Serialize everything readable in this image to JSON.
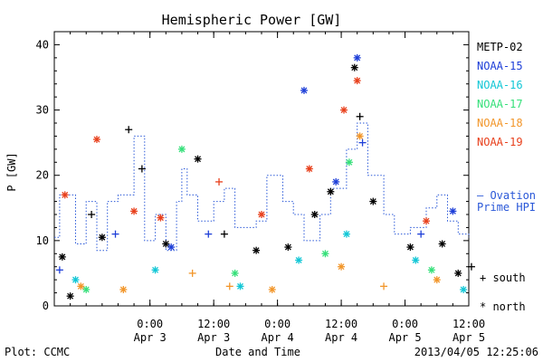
{
  "chart_data": {
    "type": "scatter",
    "title": "Hemispheric Power [GW]",
    "ylabel": "P [GW]",
    "xlabel": "Date and Time",
    "ylim": [
      0,
      42
    ],
    "yticks": [
      0,
      10,
      20,
      30,
      40
    ],
    "xlim": [
      "2013-04-02 06:00",
      "2013-04-05 12:00"
    ],
    "xticks": [
      {
        "t": "2013-04-03 00:00",
        "line1": "0:00",
        "line2": "Apr 3"
      },
      {
        "t": "2013-04-03 12:00",
        "line1": "12:00",
        "line2": "Apr 3"
      },
      {
        "t": "2013-04-04 00:00",
        "line1": "0:00",
        "line2": "Apr 4"
      },
      {
        "t": "2013-04-04 12:00",
        "line1": "12:00",
        "line2": "Apr 4"
      },
      {
        "t": "2013-04-05 00:00",
        "line1": "0:00",
        "line2": "Apr 5"
      },
      {
        "t": "2013-04-05 12:00",
        "line1": "12:00",
        "line2": "Apr 5"
      }
    ],
    "legend_position": "right",
    "satellite_legend": [
      {
        "name": "METP-02",
        "color": "#000000"
      },
      {
        "name": "NOAA-15",
        "color": "#1e3fd8"
      },
      {
        "name": "NOAA-16",
        "color": "#13c7d6"
      },
      {
        "name": "NOAA-17",
        "color": "#36e07a"
      },
      {
        "name": "NOAA-18",
        "color": "#f2962a"
      },
      {
        "name": "NOAA-19",
        "color": "#e8401c"
      }
    ],
    "ovation_label": [
      "— Ovation",
      "Prime HPI"
    ],
    "ovation_color": "#2a58d8",
    "ovation_series": [
      {
        "t": "2013-04-02 06:00",
        "v": 10.5
      },
      {
        "t": "2013-04-02 07:00",
        "v": 17
      },
      {
        "t": "2013-04-02 10:00",
        "v": 9.5
      },
      {
        "t": "2013-04-02 12:00",
        "v": 16
      },
      {
        "t": "2013-04-02 14:00",
        "v": 8.5
      },
      {
        "t": "2013-04-02 16:00",
        "v": 16
      },
      {
        "t": "2013-04-02 18:00",
        "v": 17
      },
      {
        "t": "2013-04-02 21:00",
        "v": 26
      },
      {
        "t": "2013-04-02 23:00",
        "v": 10
      },
      {
        "t": "2013-04-03 01:00",
        "v": 14
      },
      {
        "t": "2013-04-03 03:00",
        "v": 8.5
      },
      {
        "t": "2013-04-03 05:00",
        "v": 16
      },
      {
        "t": "2013-04-03 06:00",
        "v": 21
      },
      {
        "t": "2013-04-03 07:00",
        "v": 17
      },
      {
        "t": "2013-04-03 09:00",
        "v": 13
      },
      {
        "t": "2013-04-03 12:00",
        "v": 16
      },
      {
        "t": "2013-04-03 14:00",
        "v": 18
      },
      {
        "t": "2013-04-03 16:00",
        "v": 12
      },
      {
        "t": "2013-04-03 20:00",
        "v": 13
      },
      {
        "t": "2013-04-03 22:00",
        "v": 20
      },
      {
        "t": "2013-04-04 01:00",
        "v": 16
      },
      {
        "t": "2013-04-04 03:00",
        "v": 14
      },
      {
        "t": "2013-04-04 05:00",
        "v": 10
      },
      {
        "t": "2013-04-04 08:00",
        "v": 14
      },
      {
        "t": "2013-04-04 10:00",
        "v": 18
      },
      {
        "t": "2013-04-04 13:00",
        "v": 24
      },
      {
        "t": "2013-04-04 15:00",
        "v": 28
      },
      {
        "t": "2013-04-04 17:00",
        "v": 20
      },
      {
        "t": "2013-04-04 20:00",
        "v": 14
      },
      {
        "t": "2013-04-04 22:00",
        "v": 11
      },
      {
        "t": "2013-04-05 01:00",
        "v": 12
      },
      {
        "t": "2013-04-05 04:00",
        "v": 15
      },
      {
        "t": "2013-04-05 06:00",
        "v": 17
      },
      {
        "t": "2013-04-05 08:00",
        "v": 13
      },
      {
        "t": "2013-04-05 10:00",
        "v": 11
      },
      {
        "t": "2013-04-05 12:00",
        "v": 10.5
      }
    ],
    "series": [
      {
        "name": "METP-02",
        "color": "#000000",
        "points": [
          {
            "t": "2013-04-02 07:30",
            "v": 7.5,
            "h": "north"
          },
          {
            "t": "2013-04-02 09:00",
            "v": 1.5,
            "h": "north"
          },
          {
            "t": "2013-04-02 13:00",
            "v": 14,
            "h": "south"
          },
          {
            "t": "2013-04-02 15:00",
            "v": 10.5,
            "h": "north"
          },
          {
            "t": "2013-04-02 20:00",
            "v": 27,
            "h": "south"
          },
          {
            "t": "2013-04-02 22:30",
            "v": 21,
            "h": "south"
          },
          {
            "t": "2013-04-03 03:00",
            "v": 9.5,
            "h": "north"
          },
          {
            "t": "2013-04-03 09:00",
            "v": 22.5,
            "h": "north"
          },
          {
            "t": "2013-04-03 14:00",
            "v": 11,
            "h": "south"
          },
          {
            "t": "2013-04-03 20:00",
            "v": 8.5,
            "h": "north"
          },
          {
            "t": "2013-04-04 02:00",
            "v": 9,
            "h": "north"
          },
          {
            "t": "2013-04-04 07:00",
            "v": 14,
            "h": "north"
          },
          {
            "t": "2013-04-04 10:00",
            "v": 17.5,
            "h": "north"
          },
          {
            "t": "2013-04-04 14:30",
            "v": 36.5,
            "h": "north"
          },
          {
            "t": "2013-04-04 15:30",
            "v": 29,
            "h": "south"
          },
          {
            "t": "2013-04-04 18:00",
            "v": 16,
            "h": "north"
          },
          {
            "t": "2013-04-05 01:00",
            "v": 9,
            "h": "north"
          },
          {
            "t": "2013-04-05 07:00",
            "v": 9.5,
            "h": "north"
          },
          {
            "t": "2013-04-05 10:00",
            "v": 5,
            "h": "north"
          },
          {
            "t": "2013-04-05 12:30",
            "v": 6,
            "h": "south"
          }
        ]
      },
      {
        "name": "NOAA-15",
        "color": "#1e3fd8",
        "points": [
          {
            "t": "2013-04-02 07:00",
            "v": 5.5,
            "h": "south"
          },
          {
            "t": "2013-04-02 17:30",
            "v": 11,
            "h": "south"
          },
          {
            "t": "2013-04-03 04:00",
            "v": 9,
            "h": "north"
          },
          {
            "t": "2013-04-03 11:00",
            "v": 11,
            "h": "south"
          },
          {
            "t": "2013-04-04 05:00",
            "v": 33,
            "h": "north"
          },
          {
            "t": "2013-04-04 11:00",
            "v": 19,
            "h": "north"
          },
          {
            "t": "2013-04-04 15:00",
            "v": 38,
            "h": "north"
          },
          {
            "t": "2013-04-04 16:00",
            "v": 25,
            "h": "south"
          },
          {
            "t": "2013-04-05 03:00",
            "v": 11,
            "h": "south"
          },
          {
            "t": "2013-04-05 09:00",
            "v": 14.5,
            "h": "north"
          }
        ]
      },
      {
        "name": "NOAA-16",
        "color": "#13c7d6",
        "points": [
          {
            "t": "2013-04-02 10:00",
            "v": 4,
            "h": "north"
          },
          {
            "t": "2013-04-03 01:00",
            "v": 5.5,
            "h": "north"
          },
          {
            "t": "2013-04-03 17:00",
            "v": 3,
            "h": "north"
          },
          {
            "t": "2013-04-04 04:00",
            "v": 7,
            "h": "north"
          },
          {
            "t": "2013-04-04 13:00",
            "v": 11,
            "h": "north"
          },
          {
            "t": "2013-04-05 02:00",
            "v": 7,
            "h": "north"
          },
          {
            "t": "2013-04-05 11:00",
            "v": 2.5,
            "h": "north"
          }
        ]
      },
      {
        "name": "NOAA-17",
        "color": "#36e07a",
        "points": [
          {
            "t": "2013-04-02 12:00",
            "v": 2.5,
            "h": "north"
          },
          {
            "t": "2013-04-03 06:00",
            "v": 24,
            "h": "north"
          },
          {
            "t": "2013-04-03 16:00",
            "v": 5,
            "h": "north"
          },
          {
            "t": "2013-04-04 09:00",
            "v": 8,
            "h": "north"
          },
          {
            "t": "2013-04-04 13:30",
            "v": 22,
            "h": "north"
          },
          {
            "t": "2013-04-05 05:00",
            "v": 5.5,
            "h": "north"
          }
        ]
      },
      {
        "name": "NOAA-18",
        "color": "#f2962a",
        "points": [
          {
            "t": "2013-04-02 11:00",
            "v": 3,
            "h": "north"
          },
          {
            "t": "2013-04-02 19:00",
            "v": 2.5,
            "h": "north"
          },
          {
            "t": "2013-04-03 08:00",
            "v": 5,
            "h": "south"
          },
          {
            "t": "2013-04-03 15:00",
            "v": 3,
            "h": "south"
          },
          {
            "t": "2013-04-03 23:00",
            "v": 2.5,
            "h": "north"
          },
          {
            "t": "2013-04-04 12:00",
            "v": 6,
            "h": "north"
          },
          {
            "t": "2013-04-04 15:30",
            "v": 26,
            "h": "north"
          },
          {
            "t": "2013-04-04 20:00",
            "v": 3,
            "h": "south"
          },
          {
            "t": "2013-04-05 06:00",
            "v": 4,
            "h": "north"
          }
        ]
      },
      {
        "name": "NOAA-19",
        "color": "#e8401c",
        "points": [
          {
            "t": "2013-04-02 08:00",
            "v": 17,
            "h": "north"
          },
          {
            "t": "2013-04-02 14:00",
            "v": 25.5,
            "h": "north"
          },
          {
            "t": "2013-04-02 21:00",
            "v": 14.5,
            "h": "north"
          },
          {
            "t": "2013-04-03 02:00",
            "v": 13.5,
            "h": "north"
          },
          {
            "t": "2013-04-03 13:00",
            "v": 19,
            "h": "south"
          },
          {
            "t": "2013-04-03 21:00",
            "v": 14,
            "h": "north"
          },
          {
            "t": "2013-04-04 06:00",
            "v": 21,
            "h": "north"
          },
          {
            "t": "2013-04-04 12:30",
            "v": 30,
            "h": "north"
          },
          {
            "t": "2013-04-04 15:00",
            "v": 34.5,
            "h": "north"
          },
          {
            "t": "2013-04-05 04:00",
            "v": 13,
            "h": "north"
          }
        ]
      }
    ],
    "hemisphere_legend": [
      {
        "symbol": "+",
        "label": "south"
      },
      {
        "symbol": "*",
        "label": "north"
      }
    ]
  },
  "footer": {
    "plot_source": "Plot: CCMC",
    "timestamp": "2013/04/05 12:25:06"
  }
}
